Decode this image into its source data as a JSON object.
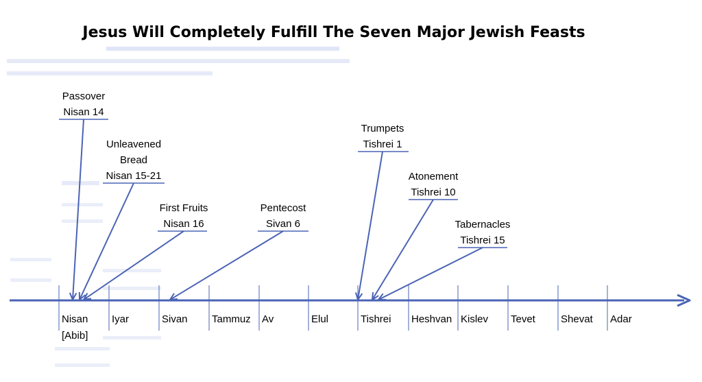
{
  "title": "Jesus Will Completely Fulfill The Seven Major Jewish Feasts",
  "colors": {
    "line": "#4a63b5",
    "text": "#000000"
  },
  "months": [
    "Nisan",
    "Iyar",
    "Sivan",
    "Tammuz",
    "Av",
    "Elul",
    "Tishrei",
    "Heshvan",
    "Kislev",
    "Tevet",
    "Shevat",
    "Adar"
  ],
  "month_note": "[Abib]",
  "feasts": [
    {
      "name_lines": [
        "Passover"
      ],
      "date": "Nisan 14"
    },
    {
      "name_lines": [
        "Unleavened",
        "Bread"
      ],
      "date": "Nisan 15-21"
    },
    {
      "name_lines": [
        "First Fruits"
      ],
      "date": "Nisan 16"
    },
    {
      "name_lines": [
        "Pentecost"
      ],
      "date": "Sivan 6"
    },
    {
      "name_lines": [
        "Trumpets"
      ],
      "date": "Tishrei 1"
    },
    {
      "name_lines": [
        "Atonement"
      ],
      "date": "Tishrei 10"
    },
    {
      "name_lines": [
        "Tabernacles"
      ],
      "date": "Tishrei 15"
    }
  ]
}
